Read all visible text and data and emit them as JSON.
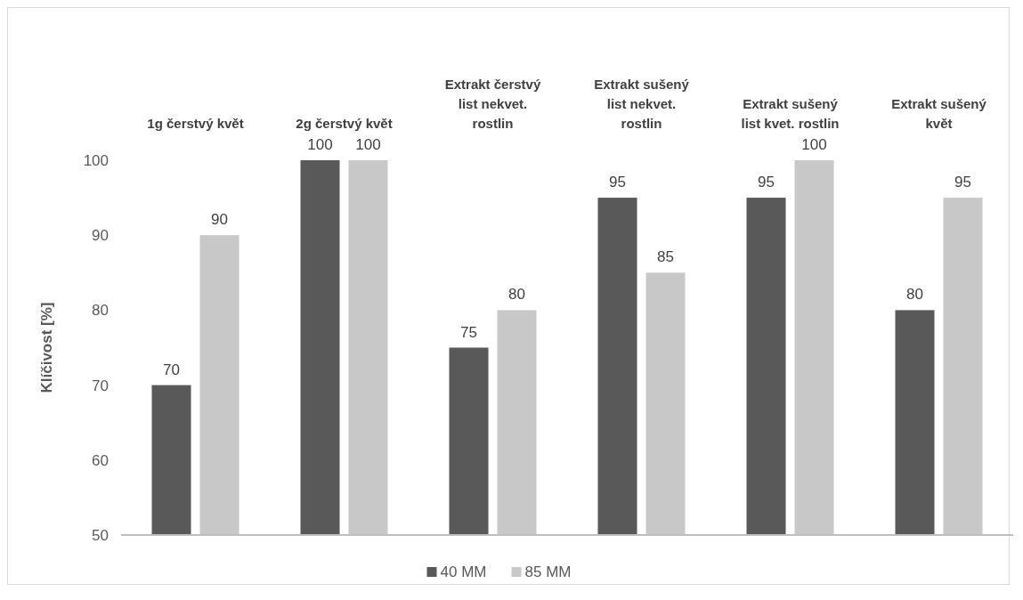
{
  "chart_data": {
    "type": "bar",
    "ylabel": "Klíčivost [%]",
    "categories": [
      "1g čerstvý květ",
      "2g čerstvý květ",
      "Extrakt čerstvý list nekvet. rostlin",
      "Extrakt sušený list nekvet. rostlin",
      "Extrakt sušený list kvet. rostlin",
      "Extrakt sušený květ"
    ],
    "series": [
      {
        "name": "40 MM",
        "color": "#595959",
        "values": [
          70,
          100,
          75,
          95,
          95,
          80
        ]
      },
      {
        "name": "85 MM",
        "color": "#c8c8c8",
        "values": [
          90,
          100,
          80,
          85,
          100,
          95
        ]
      }
    ],
    "ylim": [
      50,
      100
    ],
    "yticks": [
      50,
      60,
      70,
      80,
      90,
      100
    ],
    "grid": false,
    "legend": "bottom",
    "data_labels": true
  }
}
